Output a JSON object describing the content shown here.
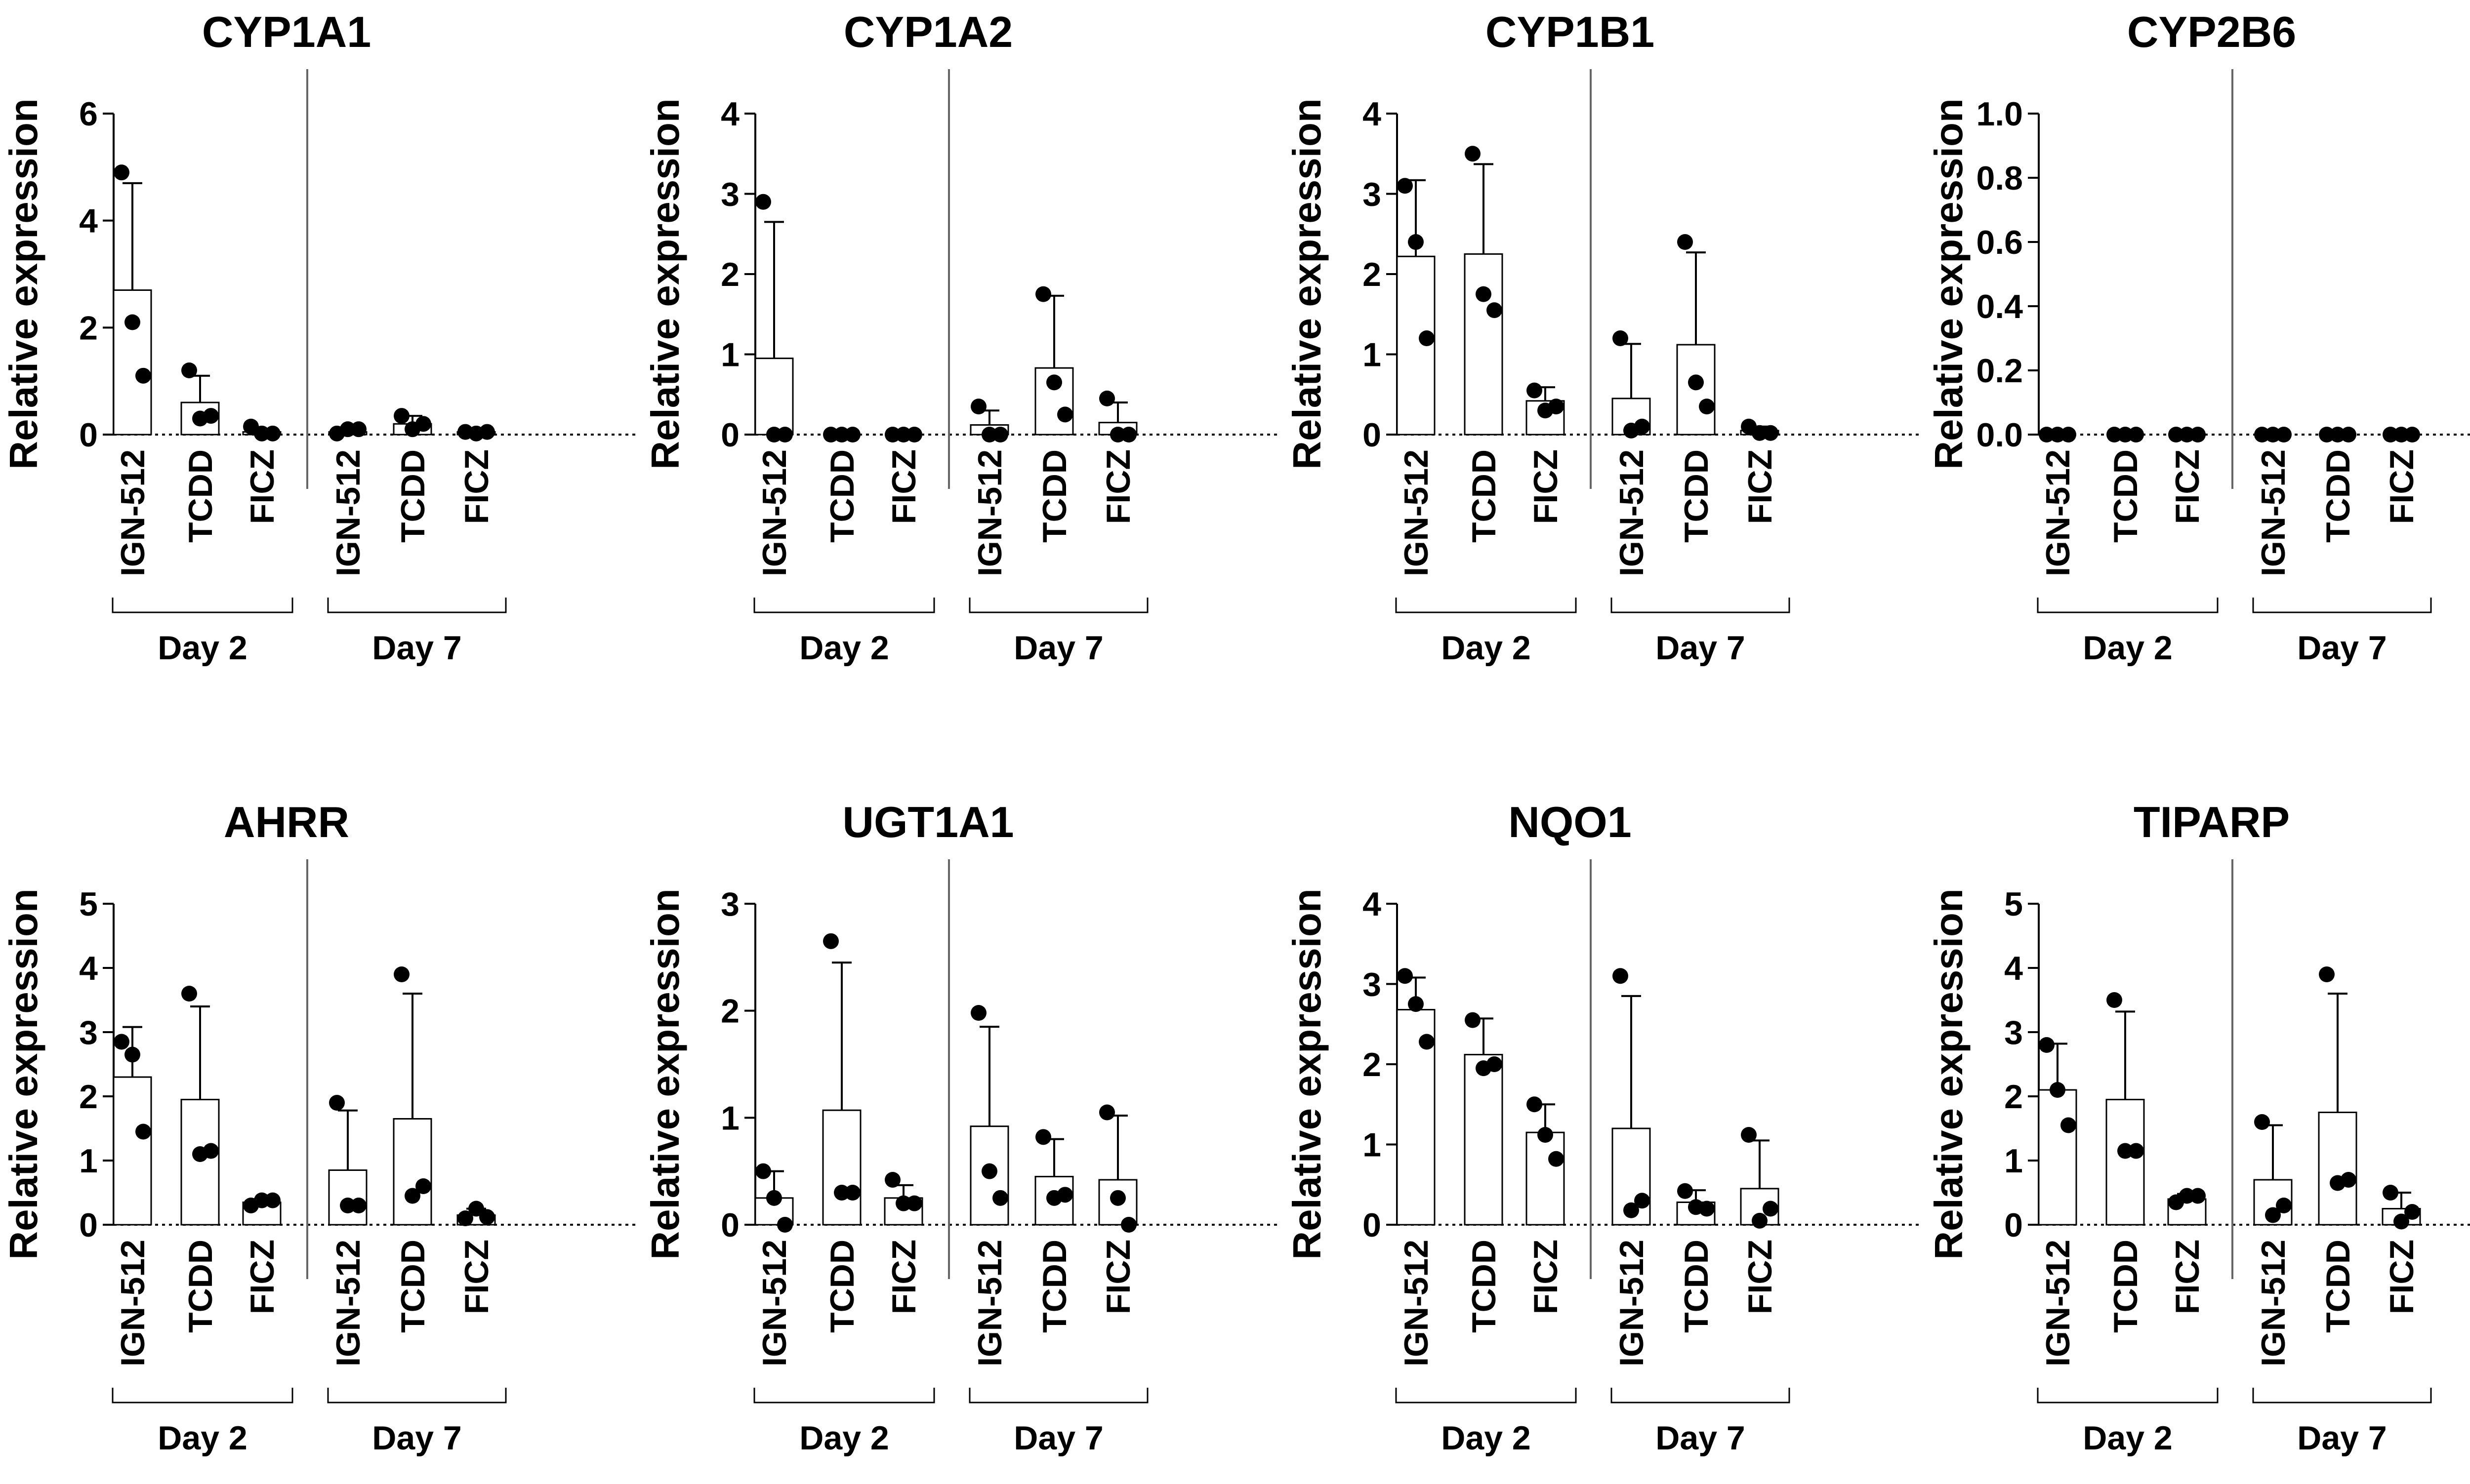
{
  "chart_data": [
    {
      "type": "bar",
      "title": "CYP1A1",
      "ylabel": "Relative expression",
      "ylim": [
        0,
        6
      ],
      "yticks": [
        "0",
        "2",
        "4",
        "6"
      ],
      "categories": [
        "IGN-512",
        "TCDD",
        "FICZ",
        "IGN-512",
        "TCDD",
        "FICZ"
      ],
      "groups": [
        {
          "label": "Day 2"
        },
        {
          "label": "Day 7"
        }
      ],
      "bars": [
        2.7,
        0.6,
        0.05,
        0.05,
        0.2,
        0.05
      ],
      "errors": [
        2.0,
        0.5,
        0.05,
        0.05,
        0.15,
        0.05
      ],
      "points": [
        [
          4.9,
          2.1,
          1.1
        ],
        [
          1.2,
          0.3,
          0.35
        ],
        [
          0.15,
          0.02,
          0.02
        ],
        [
          0.02,
          0.1,
          0.1
        ],
        [
          0.35,
          0.1,
          0.2
        ],
        [
          0.05,
          0.02,
          0.05
        ]
      ]
    },
    {
      "type": "bar",
      "title": "CYP1A2",
      "ylabel": "Relative expression",
      "ylim": [
        0,
        4
      ],
      "yticks": [
        "0",
        "1",
        "2",
        "3",
        "4"
      ],
      "categories": [
        "IGN-512",
        "TCDD",
        "FICZ",
        "IGN-512",
        "TCDD",
        "FICZ"
      ],
      "groups": [
        {
          "label": "Day 2"
        },
        {
          "label": "Day 7"
        }
      ],
      "bars": [
        0.95,
        0.0,
        0.0,
        0.12,
        0.83,
        0.15
      ],
      "errors": [
        1.7,
        0.0,
        0.0,
        0.18,
        0.9,
        0.25
      ],
      "points": [
        [
          2.9,
          0.0,
          0.0
        ],
        [
          0.0,
          0.0,
          0.0
        ],
        [
          0.0,
          0.0,
          0.0
        ],
        [
          0.35,
          0.0,
          0.0
        ],
        [
          1.75,
          0.65,
          0.25
        ],
        [
          0.45,
          0.0,
          0.0
        ]
      ]
    },
    {
      "type": "bar",
      "title": "CYP1B1",
      "ylabel": "Relative expression",
      "ylim": [
        0,
        4
      ],
      "yticks": [
        "0",
        "1",
        "2",
        "3",
        "4"
      ],
      "categories": [
        "IGN-512",
        "TCDD",
        "FICZ",
        "IGN-512",
        "TCDD",
        "FICZ"
      ],
      "groups": [
        {
          "label": "Day 2"
        },
        {
          "label": "Day 7"
        }
      ],
      "bars": [
        2.22,
        2.25,
        0.42,
        0.45,
        1.12,
        0.05
      ],
      "errors": [
        0.95,
        1.12,
        0.17,
        0.68,
        1.15,
        0.05
      ],
      "points": [
        [
          3.1,
          2.4,
          1.2
        ],
        [
          3.5,
          1.75,
          1.55
        ],
        [
          0.55,
          0.3,
          0.35
        ],
        [
          1.2,
          0.05,
          0.1
        ],
        [
          2.4,
          0.65,
          0.35
        ],
        [
          0.1,
          0.02,
          0.02
        ]
      ]
    },
    {
      "type": "bar",
      "title": "CYP2B6",
      "ylabel": "Relative expression",
      "ylim": [
        0,
        1.0
      ],
      "yticks": [
        "0.0",
        "0.2",
        "0.4",
        "0.6",
        "0.8",
        "1.0"
      ],
      "categories": [
        "IGN-512",
        "TCDD",
        "FICZ",
        "IGN-512",
        "TCDD",
        "FICZ"
      ],
      "groups": [
        {
          "label": "Day 2"
        },
        {
          "label": "Day 7"
        }
      ],
      "bars": [
        0.0,
        0.0,
        0.0,
        0.0,
        0.0,
        0.0
      ],
      "errors": [
        0.0,
        0.0,
        0.0,
        0.0,
        0.0,
        0.0
      ],
      "points": [
        [
          0.0,
          0.0,
          0.0
        ],
        [
          0.0,
          0.0,
          0.0
        ],
        [
          0.0,
          0.0,
          0.0
        ],
        [
          0.0,
          0.0,
          0.0
        ],
        [
          0.0,
          0.0,
          0.0
        ],
        [
          0.0,
          0.0,
          0.0
        ]
      ]
    },
    {
      "type": "bar",
      "title": "AHRR",
      "ylabel": "Relative expression",
      "ylim": [
        0,
        5
      ],
      "yticks": [
        "0",
        "1",
        "2",
        "3",
        "4",
        "5"
      ],
      "categories": [
        "IGN-512",
        "TCDD",
        "FICZ",
        "IGN-512",
        "TCDD",
        "FICZ"
      ],
      "groups": [
        {
          "label": "Day 2"
        },
        {
          "label": "Day 7"
        }
      ],
      "bars": [
        2.3,
        1.95,
        0.35,
        0.85,
        1.65,
        0.15
      ],
      "errors": [
        0.78,
        1.45,
        0.05,
        0.93,
        1.95,
        0.1
      ],
      "points": [
        [
          2.85,
          2.65,
          1.45
        ],
        [
          3.6,
          1.1,
          1.15
        ],
        [
          0.3,
          0.38,
          0.38
        ],
        [
          1.9,
          0.3,
          0.3
        ],
        [
          3.9,
          0.45,
          0.6
        ],
        [
          0.1,
          0.25,
          0.12
        ]
      ]
    },
    {
      "type": "bar",
      "title": "UGT1A1",
      "ylabel": "Relative expression",
      "ylim": [
        0,
        3
      ],
      "yticks": [
        "0",
        "1",
        "2",
        "3"
      ],
      "categories": [
        "IGN-512",
        "TCDD",
        "FICZ",
        "IGN-512",
        "TCDD",
        "FICZ"
      ],
      "groups": [
        {
          "label": "Day 2"
        },
        {
          "label": "Day 7"
        }
      ],
      "bars": [
        0.25,
        1.07,
        0.25,
        0.92,
        0.45,
        0.42
      ],
      "errors": [
        0.25,
        1.38,
        0.12,
        0.93,
        0.35,
        0.6
      ],
      "points": [
        [
          0.5,
          0.25,
          0.0
        ],
        [
          2.65,
          0.3,
          0.3
        ],
        [
          0.42,
          0.2,
          0.2
        ],
        [
          1.98,
          0.5,
          0.25
        ],
        [
          0.82,
          0.25,
          0.28
        ],
        [
          1.05,
          0.25,
          0.0
        ]
      ]
    },
    {
      "type": "bar",
      "title": "NQO1",
      "ylabel": "Relative expression",
      "ylim": [
        0,
        4
      ],
      "yticks": [
        "0",
        "1",
        "2",
        "3",
        "4"
      ],
      "categories": [
        "IGN-512",
        "TCDD",
        "FICZ",
        "IGN-512",
        "TCDD",
        "FICZ"
      ],
      "groups": [
        {
          "label": "Day 2"
        },
        {
          "label": "Day 7"
        }
      ],
      "bars": [
        2.68,
        2.12,
        1.15,
        1.2,
        0.28,
        0.45
      ],
      "errors": [
        0.4,
        0.45,
        0.35,
        1.65,
        0.15,
        0.6
      ],
      "points": [
        [
          3.1,
          2.75,
          2.28
        ],
        [
          2.55,
          1.95,
          2.0
        ],
        [
          1.5,
          1.12,
          0.82
        ],
        [
          3.1,
          0.18,
          0.3
        ],
        [
          0.42,
          0.22,
          0.2
        ],
        [
          1.12,
          0.05,
          0.2
        ]
      ]
    },
    {
      "type": "bar",
      "title": "TIPARP",
      "ylabel": "Relative expression",
      "ylim": [
        0,
        5
      ],
      "yticks": [
        "0",
        "1",
        "2",
        "3",
        "4",
        "5"
      ],
      "categories": [
        "IGN-512",
        "TCDD",
        "FICZ",
        "IGN-512",
        "TCDD",
        "FICZ"
      ],
      "groups": [
        {
          "label": "Day 2"
        },
        {
          "label": "Day 7"
        }
      ],
      "bars": [
        2.1,
        1.95,
        0.4,
        0.7,
        1.75,
        0.25
      ],
      "errors": [
        0.72,
        1.37,
        0.08,
        0.85,
        1.85,
        0.25
      ],
      "points": [
        [
          2.8,
          2.1,
          1.55
        ],
        [
          3.5,
          1.15,
          1.15
        ],
        [
          0.35,
          0.45,
          0.45
        ],
        [
          1.6,
          0.15,
          0.3
        ],
        [
          3.9,
          0.65,
          0.7
        ],
        [
          0.5,
          0.05,
          0.2
        ]
      ]
    }
  ]
}
